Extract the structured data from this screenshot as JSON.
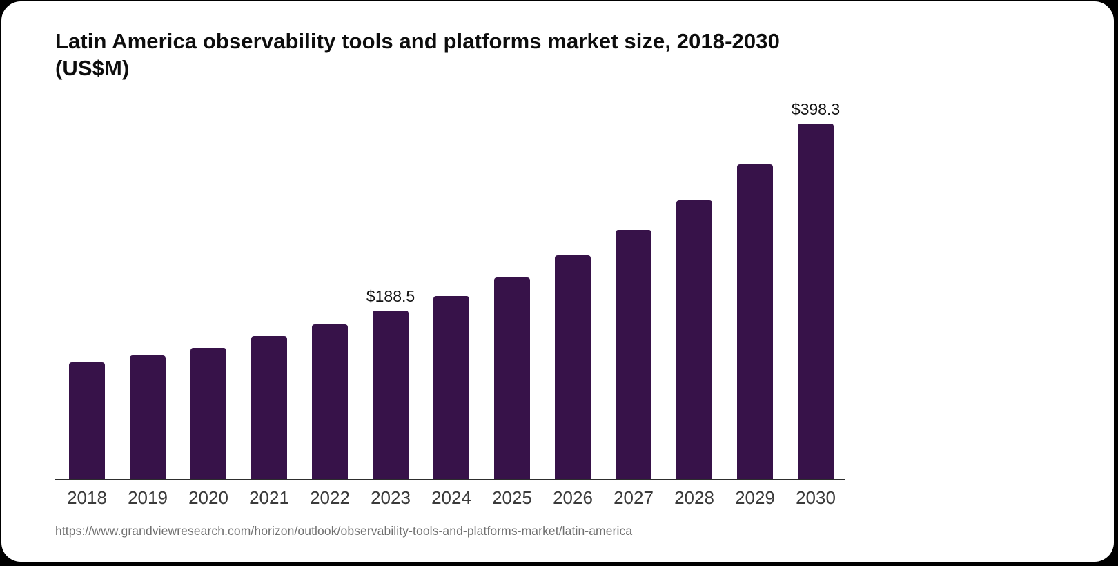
{
  "title": "Latin America observability tools and platforms market size, 2018-2030 (US$M)",
  "source_url": "https://www.grandviewresearch.com/horizon/outlook/observability-tools-and-platforms-market/latin-america",
  "colors": {
    "bar": "#371249",
    "axis": "#2e2e2e",
    "title_text": "#0d0d0d",
    "year_labels": "#3a3a3a",
    "value_labels": "#111111",
    "source_text": "#707070",
    "card_background": "#ffffff"
  },
  "chart_data": {
    "type": "bar",
    "title": "Latin America observability tools and platforms market size, 2018-2030 (US$M)",
    "unit": "US$M",
    "xlabel": "",
    "ylabel": "",
    "grid": false,
    "legend": false,
    "ylim": [
      0,
      420
    ],
    "categories": [
      "2018",
      "2019",
      "2020",
      "2021",
      "2022",
      "2023",
      "2024",
      "2025",
      "2026",
      "2027",
      "2028",
      "2029",
      "2030"
    ],
    "values": [
      130.6,
      138.4,
      147.0,
      160.1,
      173.3,
      188.5,
      205.0,
      225.8,
      250.5,
      279.1,
      312.3,
      352.5,
      398.3
    ],
    "data_labels": [
      {
        "category": "2023",
        "text": "$188.5"
      },
      {
        "category": "2030",
        "text": "$398.3"
      }
    ],
    "bar_color": "#371249"
  }
}
